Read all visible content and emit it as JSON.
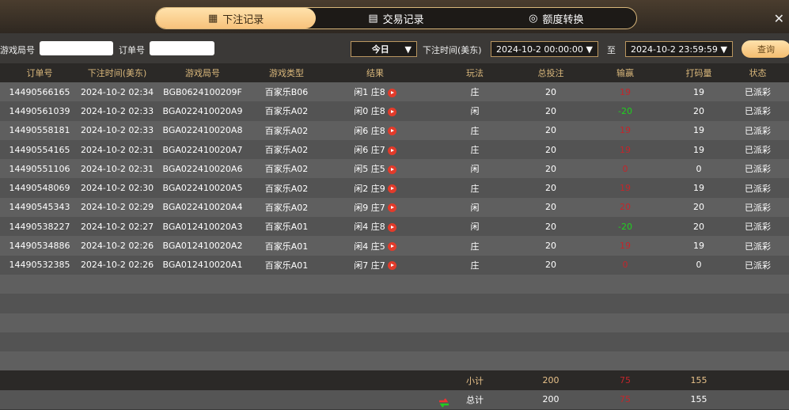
{
  "tabs": [
    {
      "label": "下注记录",
      "icon": "calendar-icon",
      "active": true
    },
    {
      "label": "交易记录",
      "icon": "clipboard-icon"
    },
    {
      "label": "额度转换",
      "icon": "coins-icon"
    }
  ],
  "filter": {
    "round_label": "游戏局号",
    "round_value": "",
    "order_label": "订单号",
    "order_value": "",
    "period": "今日",
    "time_label": "下注时间(美东)",
    "start": "2024-10-2 00:00:00",
    "to_label": "至",
    "end": "2024-10-2 23:59:59",
    "query": "查询"
  },
  "headers": [
    "订单号",
    "下注时间(美东)",
    "游戏局号",
    "游戏类型",
    "结果",
    "玩法",
    "总投注",
    "输赢",
    "打码量",
    "状态"
  ],
  "rows": [
    [
      "14490566165",
      "2024-10-2 02:34",
      "BGB0624100209F",
      "百家乐B06",
      "闲1 庄8",
      "庄",
      "20",
      "19",
      "19",
      "已派彩"
    ],
    [
      "14490561039",
      "2024-10-2 02:33",
      "BGA022410020A9",
      "百家乐A02",
      "闲0 庄8",
      "闲",
      "20",
      "-20",
      "20",
      "已派彩"
    ],
    [
      "14490558181",
      "2024-10-2 02:33",
      "BGA022410020A8",
      "百家乐A02",
      "闲6 庄8",
      "庄",
      "20",
      "19",
      "19",
      "已派彩"
    ],
    [
      "14490554165",
      "2024-10-2 02:31",
      "BGA022410020A7",
      "百家乐A02",
      "闲6 庄7",
      "庄",
      "20",
      "19",
      "19",
      "已派彩"
    ],
    [
      "14490551106",
      "2024-10-2 02:31",
      "BGA022410020A6",
      "百家乐A02",
      "闲5 庄5",
      "闲",
      "20",
      "0",
      "0",
      "已派彩"
    ],
    [
      "14490548069",
      "2024-10-2 02:30",
      "BGA022410020A5",
      "百家乐A02",
      "闲2 庄9",
      "庄",
      "20",
      "19",
      "19",
      "已派彩"
    ],
    [
      "14490545343",
      "2024-10-2 02:29",
      "BGA022410020A4",
      "百家乐A02",
      "闲9 庄7",
      "闲",
      "20",
      "20",
      "20",
      "已派彩"
    ],
    [
      "14490538227",
      "2024-10-2 02:27",
      "BGA012410020A3",
      "百家乐A01",
      "闲4 庄8",
      "闲",
      "20",
      "-20",
      "20",
      "已派彩"
    ],
    [
      "14490534886",
      "2024-10-2 02:26",
      "BGA012410020A2",
      "百家乐A01",
      "闲4 庄5",
      "庄",
      "20",
      "19",
      "19",
      "已派彩"
    ],
    [
      "14490532385",
      "2024-10-2 02:26",
      "BGA012410020A1",
      "百家乐A01",
      "闲7 庄7",
      "庄",
      "20",
      "0",
      "0",
      "已派彩"
    ]
  ],
  "subtotal": {
    "label": "小计",
    "bet": "200",
    "win": "75",
    "turnover": "155"
  },
  "total": {
    "label": "总计",
    "bet": "200",
    "win": "75",
    "turnover": "155"
  },
  "colors": {
    "accent": "#f7c27b",
    "win": "#c2262b",
    "loss": "#1ed21e"
  }
}
